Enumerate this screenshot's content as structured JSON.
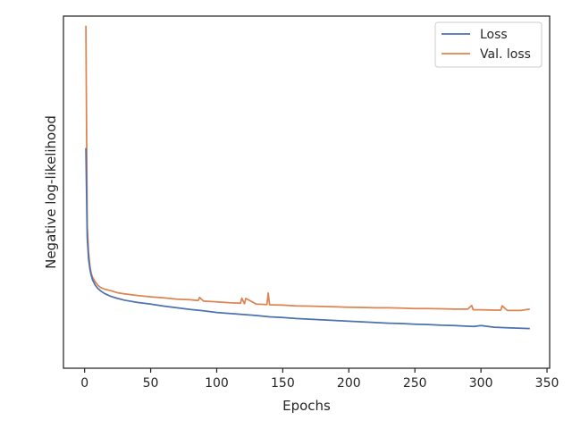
{
  "chart_data": {
    "type": "line",
    "title": "",
    "xlabel": "Epochs",
    "ylabel": "Negative log-likelihood",
    "xlim": [
      -16,
      352
    ],
    "ylim": [
      0,
      1
    ],
    "x_ticks": [
      0,
      50,
      100,
      150,
      200,
      250,
      300,
      350
    ],
    "y_ticks_shown": false,
    "grid": false,
    "legend": {
      "placement": "top-right"
    },
    "series": [
      {
        "name": "Loss",
        "color": "#4c72b0",
        "x": [
          1,
          2,
          3,
          4,
          5,
          6,
          8,
          10,
          12,
          15,
          20,
          25,
          30,
          40,
          50,
          60,
          70,
          80,
          90,
          100,
          110,
          120,
          130,
          140,
          150,
          160,
          170,
          180,
          190,
          200,
          210,
          220,
          230,
          240,
          250,
          260,
          270,
          280,
          290,
          295,
          300,
          310,
          320,
          330,
          337
        ],
        "y": [
          0.632,
          0.365,
          0.3,
          0.27,
          0.252,
          0.238,
          0.222,
          0.212,
          0.205,
          0.197,
          0.188,
          0.182,
          0.177,
          0.17,
          0.165,
          0.159,
          0.154,
          0.149,
          0.145,
          0.14,
          0.137,
          0.134,
          0.131,
          0.127,
          0.125,
          0.122,
          0.12,
          0.118,
          0.116,
          0.114,
          0.112,
          0.11,
          0.108,
          0.107,
          0.105,
          0.104,
          0.102,
          0.101,
          0.099,
          0.098,
          0.101,
          0.096,
          0.094,
          0.093,
          0.092
        ]
      },
      {
        "name": "Val. loss",
        "color": "#dd8452",
        "x": [
          1,
          2,
          3,
          4,
          5,
          6,
          8,
          10,
          12,
          15,
          20,
          25,
          30,
          40,
          50,
          60,
          70,
          80,
          86,
          87,
          90,
          100,
          110,
          118,
          119,
          121,
          122,
          130,
          138,
          139,
          140,
          150,
          160,
          170,
          180,
          190,
          200,
          210,
          220,
          230,
          240,
          250,
          260,
          270,
          280,
          290,
          293,
          294,
          295,
          300,
          310,
          315,
          316,
          320,
          330,
          337
        ],
        "y": [
          0.998,
          0.4,
          0.32,
          0.28,
          0.258,
          0.245,
          0.232,
          0.222,
          0.215,
          0.21,
          0.205,
          0.199,
          0.196,
          0.191,
          0.187,
          0.184,
          0.18,
          0.178,
          0.176,
          0.185,
          0.174,
          0.172,
          0.169,
          0.168,
          0.183,
          0.166,
          0.182,
          0.165,
          0.164,
          0.198,
          0.163,
          0.162,
          0.16,
          0.159,
          0.158,
          0.157,
          0.156,
          0.155,
          0.154,
          0.154,
          0.153,
          0.152,
          0.152,
          0.151,
          0.15,
          0.15,
          0.161,
          0.149,
          0.148,
          0.148,
          0.147,
          0.147,
          0.16,
          0.146,
          0.146,
          0.15
        ]
      }
    ]
  }
}
